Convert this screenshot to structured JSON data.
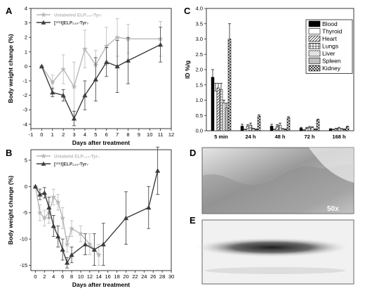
{
  "colors": {
    "unlabeled": "#b8b8b8",
    "labeled": "#3c3c3c",
    "axis": "#222222"
  },
  "chart_data": [
    {
      "panel": "A",
      "type": "line",
      "xlabel": "Days after treatment",
      "ylabel": "Body weight change (%)",
      "xlim": [
        -1,
        12
      ],
      "ylim": [
        -4.3,
        4
      ],
      "xticks": [
        "-1",
        "0",
        "1",
        "2",
        "3",
        "4",
        "5",
        "6",
        "7",
        "8",
        "9",
        "10",
        "11",
        "12"
      ],
      "yticks": [
        "-4",
        "-3",
        "-2",
        "-1",
        "0",
        "1",
        "2",
        "3",
        "4"
      ],
      "legend": [
        "Unlabeled ELP₁₂₀-Tyr₇",
        "[¹²⁵I]ELP₁₂₀-Tyr₇"
      ],
      "series": [
        {
          "name": "Unlabeled ELP₁₂₀-Tyr₇",
          "marker": "star",
          "x": [
            0,
            1,
            2,
            3,
            4,
            5,
            6,
            7,
            8,
            11
          ],
          "y": [
            0,
            -1.1,
            -0.2,
            -1.4,
            1.2,
            0.1,
            1.4,
            2.0,
            1.9,
            1.9
          ],
          "err": [
            0,
            0.5,
            1.0,
            1.7,
            1.3,
            1.0,
            1.3,
            1.3,
            1.0,
            1.2
          ]
        },
        {
          "name": "[¹²⁵I]ELP₁₂₀-Tyr₇",
          "marker": "triangle",
          "x": [
            0,
            1,
            2,
            3,
            4,
            5,
            6,
            7,
            8,
            11
          ],
          "y": [
            0,
            -1.8,
            -2.0,
            -3.6,
            -2.0,
            -0.9,
            0.3,
            0.0,
            0.4,
            1.5
          ],
          "err": [
            0,
            0.3,
            0.4,
            0.5,
            1.0,
            1.5,
            1.0,
            1.8,
            1.6,
            1.2
          ]
        }
      ]
    },
    {
      "panel": "B",
      "type": "line",
      "xlabel": "Days after treatment",
      "ylabel": "Body weight change (%)",
      "xlim": [
        -1,
        30
      ],
      "ylim": [
        -16,
        7
      ],
      "xticks": [
        "0",
        "2",
        "4",
        "6",
        "8",
        "10",
        "12",
        "14",
        "16",
        "18",
        "20",
        "22",
        "24",
        "26",
        "28",
        "30"
      ],
      "yticks": [
        "-15",
        "-10",
        "-5",
        "0",
        "5"
      ],
      "legend": [
        "Unlabeld ELP₁₂₀-Tyr₇",
        "[¹²⁵I]ELP₁₂₀-Tyr₇"
      ],
      "series": [
        {
          "name": "Unlabeld ELP₁₂₀-Tyr₇",
          "marker": "star",
          "x": [
            0,
            1,
            2,
            3,
            4,
            5,
            6,
            7,
            8,
            10,
            12,
            14
          ],
          "y": [
            0,
            -5,
            -6,
            -5,
            -2,
            -3,
            -6,
            -11,
            -8,
            -9,
            -11,
            -13
          ],
          "err": [
            0,
            1.5,
            1.5,
            2.0,
            1.5,
            1.5,
            2.0,
            1.5,
            1.5,
            1.5,
            2.0,
            2.0
          ]
        },
        {
          "name": "[¹²⁵I]ELP₁₂₀-Tyr₇",
          "marker": "triangle",
          "x": [
            0,
            1,
            2,
            3,
            4,
            5,
            6,
            7,
            8,
            11,
            13,
            15,
            20,
            25,
            27
          ],
          "y": [
            0,
            -1.5,
            -1.2,
            -4.0,
            -7.5,
            -9.5,
            -12.0,
            -14.5,
            -13.0,
            -11.0,
            -12.0,
            -11.0,
            -6.0,
            -4.0,
            3.0
          ],
          "err": [
            0,
            1.0,
            1.0,
            2.0,
            2.0,
            2.0,
            2.0,
            1.0,
            1.5,
            2.0,
            3.0,
            4.0,
            5.0,
            4.0,
            4.5
          ]
        }
      ]
    },
    {
      "panel": "C",
      "type": "bar",
      "ylabel": "ID %/g",
      "ylim": [
        0,
        4.0
      ],
      "yticks": [
        "0.0",
        "0.5",
        "1.0",
        "1.5",
        "2.0",
        "2.5",
        "3.0",
        "3.5",
        "4.0"
      ],
      "categories": [
        "5 min",
        "24 h",
        "48 h",
        "72 h",
        "168 h"
      ],
      "series": [
        {
          "name": "Blood",
          "values": [
            1.75,
            0.15,
            0.15,
            0.08,
            0.05
          ],
          "err": [
            0.25,
            0.06,
            0.06,
            0.03,
            0.02
          ]
        },
        {
          "name": "Thyroid",
          "values": [
            1.3,
            0.03,
            0.03,
            0.02,
            0.03
          ],
          "err": [
            0.25,
            0.02,
            0.02,
            0.01,
            0.02
          ]
        },
        {
          "name": "Heart",
          "values": [
            1.4,
            0.15,
            0.15,
            0.08,
            0.06
          ],
          "err": [
            0.15,
            0.05,
            0.05,
            0.03,
            0.02
          ]
        },
        {
          "name": "Lungs",
          "values": [
            1.35,
            0.18,
            0.18,
            0.1,
            0.08
          ],
          "err": [
            0.2,
            0.07,
            0.07,
            0.04,
            0.03
          ]
        },
        {
          "name": "Liver",
          "values": [
            0.9,
            0.06,
            0.05,
            0.1,
            0.05
          ],
          "err": [
            0.1,
            0.02,
            0.02,
            0.03,
            0.02
          ]
        },
        {
          "name": "Spleen",
          "values": [
            0.75,
            0.04,
            0.04,
            0.04,
            0.04
          ],
          "err": [
            0.15,
            0.02,
            0.02,
            0.02,
            0.02
          ]
        },
        {
          "name": "Kidney",
          "values": [
            3.0,
            0.48,
            0.42,
            0.35,
            0.12
          ],
          "err": [
            0.5,
            0.04,
            0.04,
            0.03,
            0.03
          ]
        }
      ]
    }
  ],
  "panels": {
    "A": "A",
    "B": "B",
    "C": "C",
    "D": "D",
    "E": "E",
    "magnification": "50x"
  }
}
